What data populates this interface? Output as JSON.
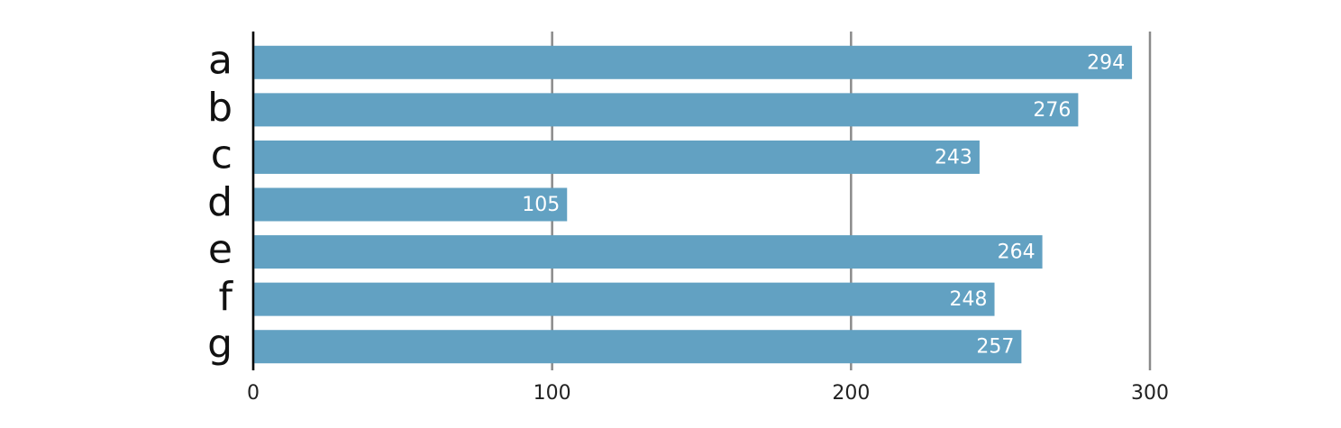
{
  "chart_data": {
    "type": "bar",
    "orientation": "horizontal",
    "categories": [
      "a",
      "b",
      "c",
      "d",
      "e",
      "f",
      "g"
    ],
    "values": [
      294,
      276,
      243,
      105,
      264,
      248,
      257
    ],
    "color": "#62a1c2",
    "xlim": [
      0,
      300
    ],
    "xticks": [
      0,
      100,
      200,
      300
    ],
    "grid": true
  }
}
